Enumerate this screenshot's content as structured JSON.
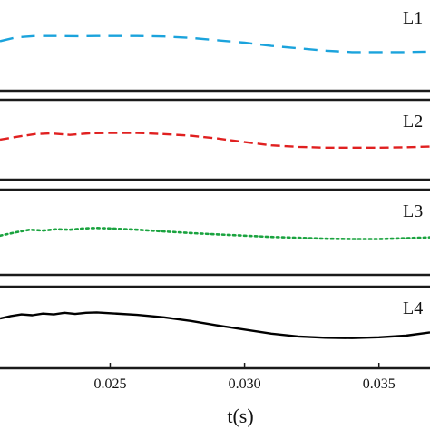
{
  "chart_data": {
    "type": "line",
    "xlabel": "t(s)",
    "xticks": [
      {
        "value": 0.025,
        "label": "0.025"
      },
      {
        "value": 0.03,
        "label": "0.030"
      },
      {
        "value": 0.035,
        "label": "0.035"
      }
    ],
    "xlim": [
      0.0209,
      0.0369
    ],
    "ylim": [
      -1,
      1
    ],
    "grid": false,
    "panels": [
      {
        "label": "L1",
        "color": "#1ba3dc",
        "dash": "long-dash",
        "x": [
          0.0209,
          0.0215,
          0.0222,
          0.023,
          0.0238,
          0.0245,
          0.0252,
          0.026,
          0.027,
          0.028,
          0.029,
          0.03,
          0.031,
          0.032,
          0.033,
          0.034,
          0.035,
          0.036,
          0.0369
        ],
        "y": [
          0.05,
          0.13,
          0.16,
          0.16,
          0.155,
          0.16,
          0.16,
          0.16,
          0.15,
          0.12,
          0.07,
          0.02,
          -0.05,
          -0.1,
          -0.15,
          -0.18,
          -0.18,
          -0.18,
          -0.17
        ]
      },
      {
        "label": "L2",
        "color": "#e02020",
        "dash": "dash",
        "x": [
          0.0209,
          0.0215,
          0.0222,
          0.0228,
          0.0235,
          0.0242,
          0.025,
          0.026,
          0.027,
          0.028,
          0.029,
          0.03,
          0.031,
          0.032,
          0.033,
          0.034,
          0.035,
          0.036,
          0.0369
        ],
        "y": [
          0.0,
          0.07,
          0.14,
          0.16,
          0.12,
          0.16,
          0.17,
          0.17,
          0.14,
          0.1,
          0.03,
          -0.06,
          -0.14,
          -0.18,
          -0.2,
          -0.2,
          -0.2,
          -0.19,
          -0.17
        ]
      },
      {
        "label": "L3",
        "color": "#1aa33f",
        "dash": "dot",
        "x": [
          0.0209,
          0.0215,
          0.022,
          0.0225,
          0.023,
          0.0235,
          0.024,
          0.0245,
          0.025,
          0.026,
          0.027,
          0.028,
          0.029,
          0.03,
          0.031,
          0.032,
          0.033,
          0.034,
          0.035,
          0.036,
          0.0369
        ],
        "y": [
          -0.08,
          0.0,
          0.06,
          0.04,
          0.07,
          0.06,
          0.09,
          0.1,
          0.09,
          0.06,
          0.02,
          -0.02,
          -0.05,
          -0.08,
          -0.11,
          -0.13,
          -0.15,
          -0.16,
          -0.16,
          -0.14,
          -0.12
        ]
      },
      {
        "label": "L4",
        "color": "#000000",
        "dash": "solid",
        "x": [
          0.0209,
          0.0213,
          0.0217,
          0.0221,
          0.0225,
          0.0229,
          0.0233,
          0.0237,
          0.0241,
          0.0245,
          0.025,
          0.026,
          0.027,
          0.028,
          0.029,
          0.03,
          0.031,
          0.032,
          0.033,
          0.034,
          0.035,
          0.036,
          0.0369
        ],
        "y": [
          0.22,
          0.28,
          0.32,
          0.3,
          0.34,
          0.32,
          0.36,
          0.33,
          0.36,
          0.37,
          0.35,
          0.31,
          0.25,
          0.16,
          0.05,
          -0.05,
          -0.15,
          -0.22,
          -0.25,
          -0.26,
          -0.24,
          -0.2,
          -0.12
        ]
      }
    ]
  }
}
